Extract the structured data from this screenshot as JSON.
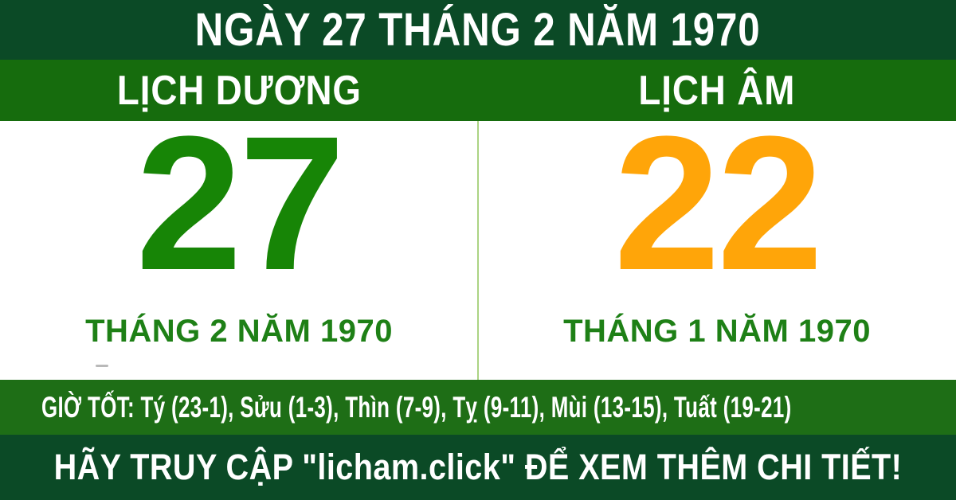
{
  "header": {
    "title": "NGÀY 27 THÁNG 2 NĂM 1970"
  },
  "solar": {
    "header_label": "LỊCH DƯƠNG",
    "day": "27",
    "month_label": "THÁNG 2 NĂM 1970"
  },
  "lunar": {
    "header_label": "LỊCH ÂM",
    "day": "22",
    "month_label": "THÁNG 1 NĂM 1970"
  },
  "good_hours": {
    "text": "GIỜ TỐT: Tý (23-1), Sửu (1-3), Thìn (7-9), Tỵ (9-11), Mùi (13-15), Tuất (19-21)"
  },
  "footer": {
    "text": "HÃY TRUY CẬP \"licham.click\" ĐỂ XEM THÊM CHI TIẾT!"
  },
  "colors": {
    "dark_green": "#0b4a26",
    "bright_green": "#166c0d",
    "mid_green": "#1e6e16",
    "day_green": "#178506",
    "day_orange": "#ffa509",
    "label_green": "#1e8016",
    "divider_green": "#abd483"
  }
}
